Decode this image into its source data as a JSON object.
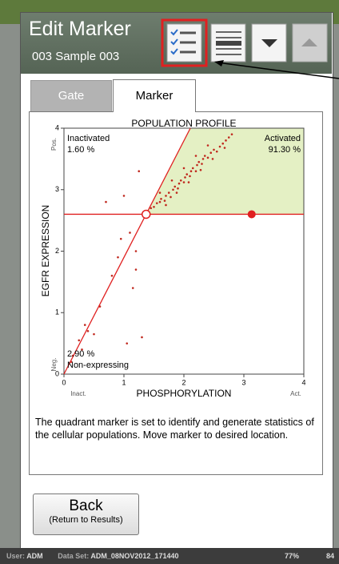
{
  "header": {
    "title": "Edit Marker",
    "subtitle": "003 Sample 003"
  },
  "tabs": [
    "Gate",
    "Marker"
  ],
  "chart_data": {
    "type": "scatter",
    "title": "POPULATION PROFILE",
    "x_label": "PHOSPHORYLATION",
    "y_label": "EGFR EXPRESSION",
    "x_end_labels": [
      "Inact.",
      "Act."
    ],
    "y_end_labels": [
      "Neg.",
      "Pos."
    ],
    "xlim": [
      0,
      4
    ],
    "ylim": [
      0,
      4
    ],
    "xticks": [
      0,
      1,
      2,
      3,
      4
    ],
    "yticks": [
      0,
      1,
      2,
      3,
      4
    ],
    "color": "#c0281e",
    "marker_color": "#e02020",
    "region_color": "#e4f0c4",
    "points": {
      "x": [
        1.45,
        1.5,
        1.55,
        1.6,
        1.62,
        1.68,
        1.7,
        1.75,
        1.78,
        1.82,
        1.85,
        1.9,
        1.92,
        1.95,
        2.0,
        2.02,
        2.05,
        2.1,
        2.12,
        2.15,
        2.2,
        2.22,
        2.25,
        2.3,
        2.32,
        2.35,
        2.4,
        2.45,
        2.5,
        2.55,
        2.6,
        2.65,
        2.7,
        2.75,
        2.8,
        1.7,
        1.88,
        2.08,
        2.28,
        2.48,
        2.68,
        1.6,
        1.8,
        2.0,
        2.2,
        2.4,
        0.15,
        0.25,
        0.3,
        0.4,
        0.5,
        0.12,
        0.35,
        0.6,
        0.8,
        0.9,
        1.1,
        1.2,
        1.0,
        0.7,
        1.25,
        1.15,
        1.3,
        1.05,
        0.95,
        1.2
      ],
      "y": [
        2.7,
        2.72,
        2.78,
        2.8,
        2.85,
        2.82,
        2.9,
        2.95,
        2.88,
        3.0,
        3.05,
        3.02,
        3.1,
        3.15,
        3.12,
        3.2,
        3.25,
        3.22,
        3.3,
        3.35,
        3.3,
        3.4,
        3.45,
        3.42,
        3.5,
        3.55,
        3.52,
        3.6,
        3.65,
        3.62,
        3.7,
        3.75,
        3.8,
        3.85,
        3.9,
        2.75,
        2.95,
        3.12,
        3.32,
        3.5,
        3.68,
        2.95,
        3.15,
        3.35,
        3.55,
        3.72,
        0.3,
        0.55,
        0.4,
        0.7,
        0.65,
        0.2,
        0.8,
        1.1,
        1.6,
        1.9,
        2.3,
        2.0,
        2.9,
        2.8,
        3.3,
        1.4,
        0.6,
        0.5,
        2.2,
        1.7
      ]
    },
    "marker": {
      "x": 1.37,
      "y": 2.6,
      "handle_x": 3.13
    },
    "quadrants": [
      {
        "name": "Inactivated",
        "percent": "1.60 %"
      },
      {
        "name": "Activated",
        "percent": "91.30 %"
      },
      {
        "name": "Non-expressing",
        "percent": "2.90 %"
      }
    ]
  },
  "description": "The quadrant marker is set to identify and generate statistics of the cellular populations. Move marker to desired location.",
  "back_button": {
    "label": "Back",
    "sublabel": "(Return to Results)"
  },
  "status_bar": {
    "user_label": "User:",
    "user": "ADM",
    "dataset_label": "Data Set:",
    "dataset": "ADM_08NOV2012_171440",
    "battery1": "77%",
    "battery2": "84"
  }
}
